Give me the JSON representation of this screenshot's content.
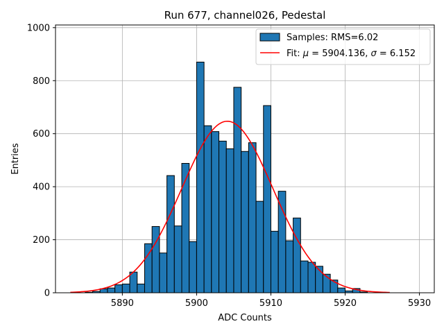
{
  "chart_data": {
    "type": "bar",
    "title": "Run 677, channel026, Pedestal",
    "xlabel": "ADC Counts",
    "ylabel": "Entries",
    "xlim": [
      5881,
      5932
    ],
    "ylim": [
      0,
      1010
    ],
    "xticks": [
      5890,
      5900,
      5910,
      5920,
      5930
    ],
    "xtick_labels": [
      "5890",
      "5900",
      "5910",
      "5920",
      "5930"
    ],
    "yticks": [
      0,
      200,
      400,
      600,
      800,
      1000
    ],
    "ytick_labels": [
      "0",
      "200",
      "400",
      "600",
      "800",
      "1000"
    ],
    "grid": true,
    "legend_position": "top-right",
    "histogram": {
      "name": "Samples: RMS=6.02",
      "color": "#1f77b4",
      "edge_color": "#000000",
      "bin_edges": [
        5883.0,
        5884.0,
        5885.0,
        5886.0,
        5887.0,
        5888.0,
        5889.0,
        5890.0,
        5891.0,
        5892.0,
        5893.0,
        5894.0,
        5895.0,
        5896.0,
        5897.0,
        5898.0,
        5899.0,
        5900.0,
        5901.0,
        5902.0,
        5903.0,
        5904.0,
        5905.0,
        5906.0,
        5907.0,
        5908.0,
        5909.0,
        5910.0,
        5911.0,
        5912.0,
        5913.0,
        5914.0,
        5915.0,
        5916.0,
        5917.0,
        5918.0,
        5919.0,
        5920.0,
        5921.0,
        5922.0,
        5923.0,
        5924.0
      ],
      "counts": [
        0,
        0,
        2,
        5,
        15,
        18,
        30,
        33,
        78,
        33,
        185,
        250,
        150,
        442,
        252,
        488,
        193,
        870,
        630,
        608,
        572,
        543,
        775,
        533,
        566,
        345,
        706,
        232,
        383,
        196,
        282,
        120,
        115,
        100,
        70,
        48,
        18,
        7,
        16,
        3,
        0
      ]
    },
    "fit": {
      "name": "Fit: μ = 5904.136, σ = 6.152",
      "color": "#ff0000",
      "mu": 5904.136,
      "sigma": 6.152,
      "peak": 647,
      "x_range": [
        5883,
        5926
      ]
    }
  },
  "legend": {
    "hist_label": "Samples: RMS=6.02",
    "fit_label_prefix": "Fit: ",
    "fit_mu_symbol": "μ",
    "fit_mu_value": " = 5904.136, ",
    "fit_sigma_symbol": "σ",
    "fit_sigma_value": " = 6.152"
  }
}
